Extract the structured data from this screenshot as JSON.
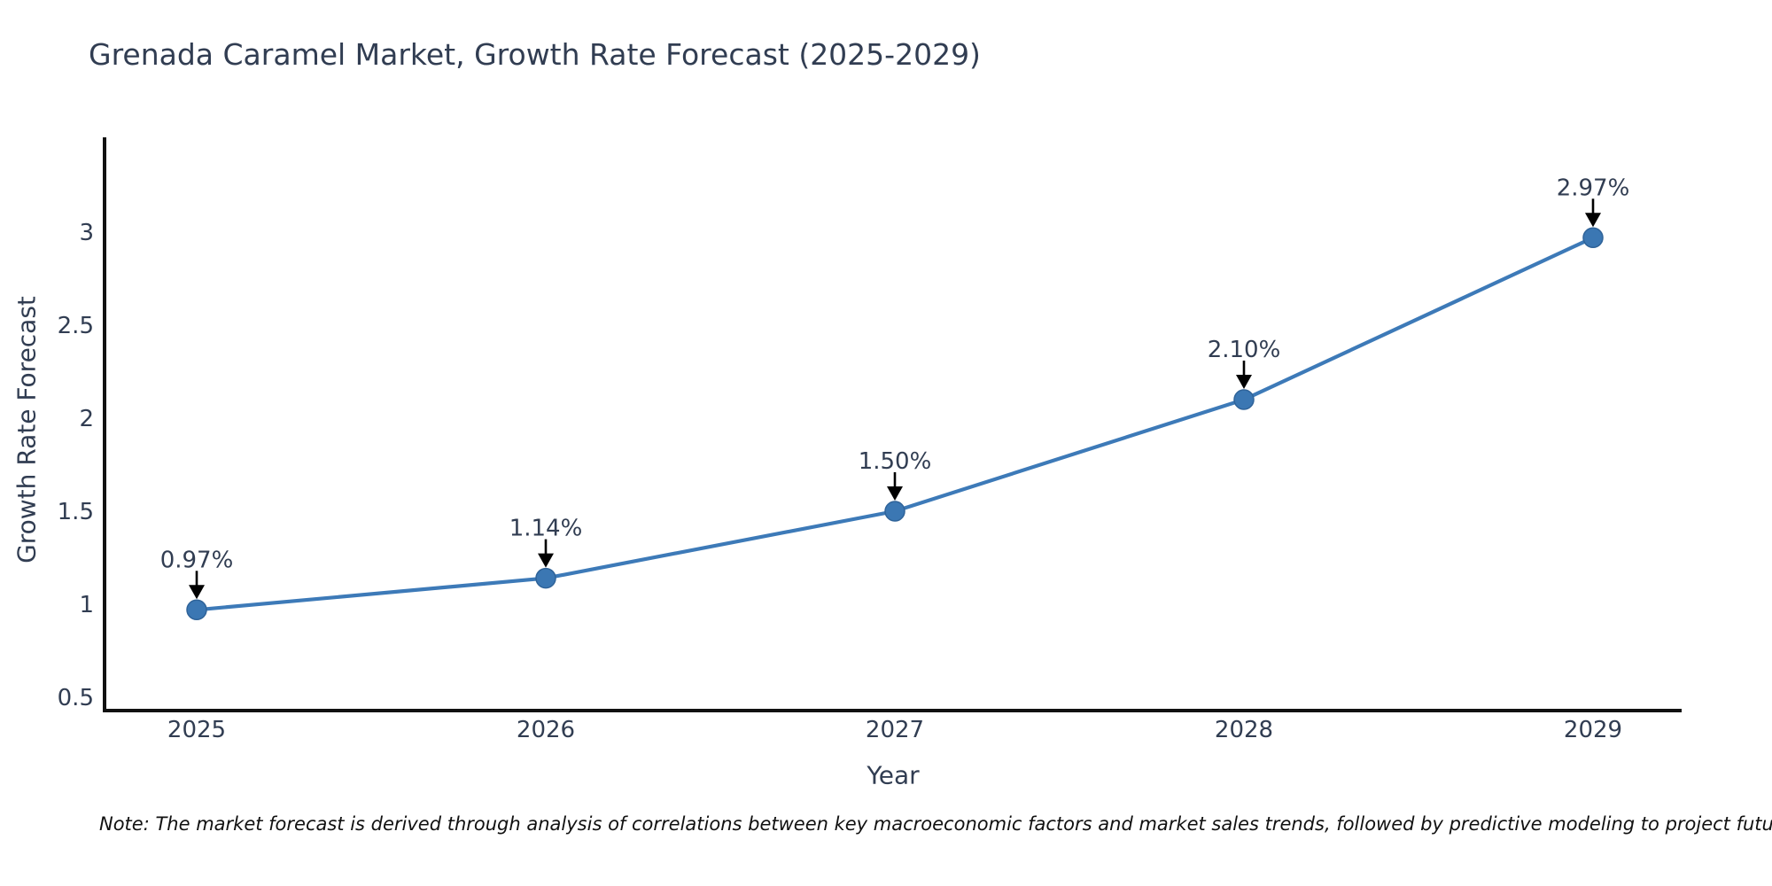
{
  "page": {
    "background": "#ffffff"
  },
  "header": {
    "title": "Grenada Caramel Market, Growth Rate Forecast (2025-2029)"
  },
  "chart_data": {
    "type": "line",
    "title": "Grenada Caramel Market, Growth Rate Forecast (2025-2029)",
    "x": [
      2025,
      2026,
      2027,
      2028,
      2029
    ],
    "xtick_labels": [
      "2025",
      "2026",
      "2027",
      "2028",
      "2029"
    ],
    "series": [
      {
        "name": "Growth Rate Forecast",
        "values": [
          0.97,
          1.14,
          1.5,
          2.1,
          2.97
        ]
      }
    ],
    "point_labels": [
      "0.97%",
      "1.14%",
      "1.50%",
      "2.10%",
      "2.97%"
    ],
    "xlabel": "Year",
    "ylabel": "Growth Rate Forecast",
    "yticks": [
      0.5,
      1,
      1.5,
      2,
      2.5,
      3
    ],
    "ytick_labels": [
      "0.5",
      "1",
      "1.5",
      "2",
      "2.5",
      "3"
    ],
    "ylim": [
      0.43,
      3.51
    ],
    "grid": false,
    "legend_visible": false,
    "colors": {
      "line": "#3d7ab8",
      "marker_fill": "#3b77b3",
      "marker_edge": "#2f6399",
      "axis": "#111111",
      "tick_text": "#313d52",
      "annotation_text": "#313d52",
      "annotation_arrow": "#000000"
    }
  },
  "note": {
    "text": "Note: The market forecast is derived through analysis of correlations between key macroeconomic factors and market sales trends, followed by predictive modeling to project future sales"
  }
}
